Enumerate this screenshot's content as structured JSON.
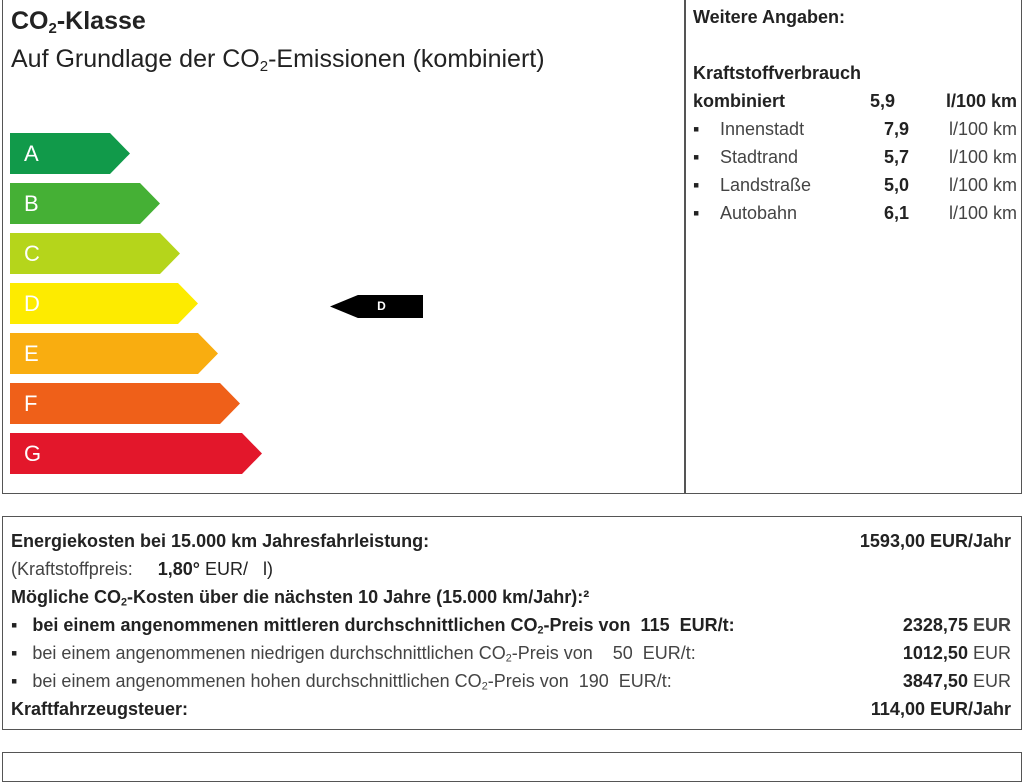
{
  "header": {
    "title_pre": "CO",
    "title_sub": "2",
    "title_post": "-Klasse",
    "subtitle_pre": "Auf Grundlage der CO",
    "subtitle_sub": "2",
    "subtitle_post": "-Emissionen (kombiniert)"
  },
  "classes": [
    {
      "label": "A",
      "color": "#119a4a"
    },
    {
      "label": "B",
      "color": "#45b035"
    },
    {
      "label": "C",
      "color": "#b5d51b"
    },
    {
      "label": "D",
      "color": "#fdeb00"
    },
    {
      "label": "E",
      "color": "#f9ad10"
    },
    {
      "label": "F",
      "color": "#ef6019"
    },
    {
      "label": "G",
      "color": "#e3172b"
    }
  ],
  "current_class": "D",
  "side": {
    "title": "Weitere Angaben:",
    "fuel_title": "Kraftstoffverbrauch",
    "combined": {
      "label": "kombiniert",
      "value": "5,9",
      "unit": "l/100 km"
    },
    "items": [
      {
        "label": "Innenstadt",
        "value": "7,9",
        "unit": "l/100 km"
      },
      {
        "label": "Stadtrand",
        "value": "5,7",
        "unit": "l/100 km"
      },
      {
        "label": "Landstraße",
        "value": "5,0",
        "unit": "l/100 km"
      },
      {
        "label": "Autobahn",
        "value": "6,1",
        "unit": "l/100 km"
      }
    ]
  },
  "costs": {
    "energy_label": "Energiekosten bei 15.000 km Jahresfahrleistung:",
    "energy_value": "1593,00 EUR/Jahr",
    "fuel_price_label": "(Kraftstoffpreis:",
    "fuel_price_value": "1,80°",
    "fuel_price_unit": "EUR/   l)",
    "co2_title_pre": "Mögliche CO",
    "co2_title_post": "-Kosten über die nächsten 10 Jahre (15.000 km/Jahr):²",
    "scenarios": [
      {
        "pre": "bei einem angenommenen mittleren durchschnittlichen CO",
        "post": "-Preis von  115  EUR/t:",
        "value": "2328,75",
        "unit": "EUR"
      },
      {
        "pre": "bei einem angenommenen niedrigen durchschnittlichen CO",
        "post": "-Preis von    50  EUR/t:",
        "value": "1012,50",
        "unit": "EUR"
      },
      {
        "pre": "bei einem angenommenen hohen durchschnittlichen CO",
        "post": "-Preis von  190  EUR/t:",
        "value": "3847,50",
        "unit": "EUR"
      }
    ],
    "tax_label": "Kraftfahrzeugsteuer:",
    "tax_value": "114,00 EUR/Jahr"
  }
}
